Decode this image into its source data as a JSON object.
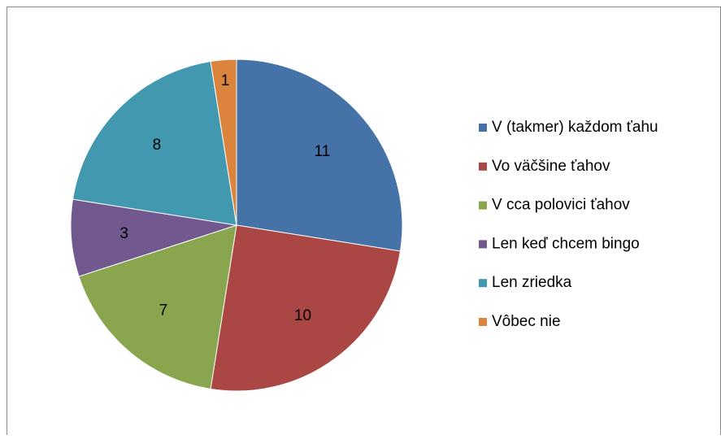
{
  "chart_data": {
    "type": "pie",
    "categories": [
      "V (takmer) každom ťahu",
      "Vo väčšine ťahov",
      "V cca polovici ťahov",
      "Len keď chcem bingo",
      "Len zriedka",
      "Vôbec nie"
    ],
    "values": [
      11,
      10,
      7,
      3,
      8,
      1
    ],
    "colors": [
      "#4572a7",
      "#aa4643",
      "#89a54e",
      "#71588f",
      "#4198af",
      "#db843d"
    ],
    "legend": "right"
  }
}
